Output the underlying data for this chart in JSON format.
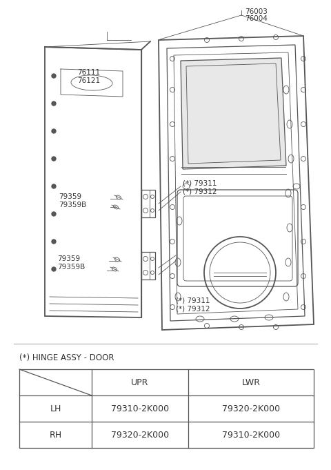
{
  "bg_color": "#ffffff",
  "line_color": "#555555",
  "label_color": "#333333",
  "table_title": "(*) HINGE ASSY - DOOR",
  "table_headers": [
    "",
    "UPR",
    "LWR"
  ],
  "table_rows": [
    [
      "LH",
      "79310-2K000",
      "79320-2K000"
    ],
    [
      "RH",
      "79320-2K000",
      "79310-2K000"
    ]
  ],
  "fig_width": 4.8,
  "fig_height": 6.81,
  "dpi": 100
}
